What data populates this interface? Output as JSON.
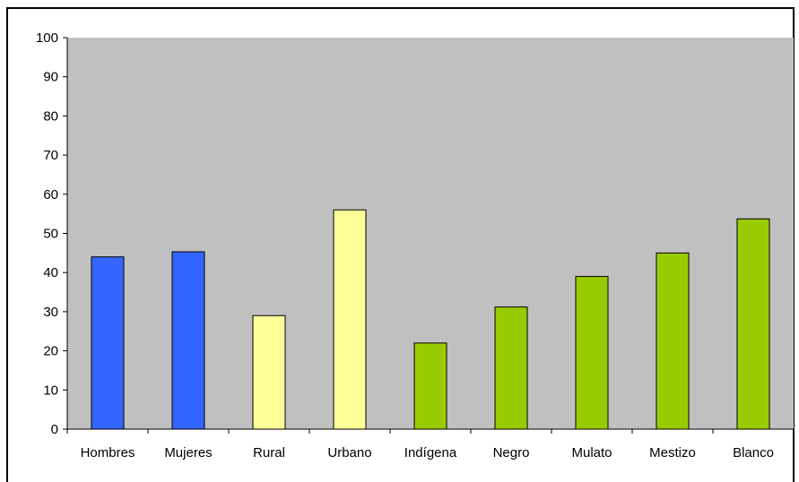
{
  "chart_data": {
    "type": "bar",
    "categories": [
      "Hombres",
      "Mujeres",
      "Rural",
      "Urbano",
      "Indígena",
      "Negro",
      "Mulato",
      "Mestizo",
      "Blanco"
    ],
    "values": [
      44,
      45.3,
      29,
      56,
      22,
      31.2,
      39,
      45,
      53.7
    ],
    "bar_colors": [
      "#3366ff",
      "#3366ff",
      "#ffff99",
      "#ffff99",
      "#99cc00",
      "#99cc00",
      "#99cc00",
      "#99cc00",
      "#99cc00"
    ],
    "ylim": [
      0,
      100
    ],
    "yticks": [
      0,
      10,
      20,
      30,
      40,
      50,
      60,
      70,
      80,
      90,
      100
    ],
    "plot_background": "#c0c0c0",
    "grid": false,
    "legend": "none",
    "title": "",
    "xlabel": "",
    "ylabel": ""
  }
}
